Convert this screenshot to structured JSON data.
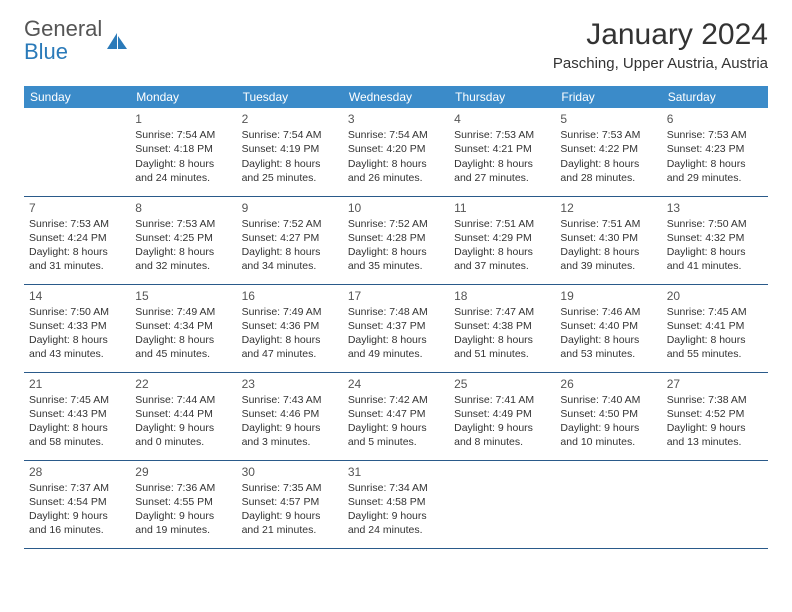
{
  "logo": {
    "text_gray": "General",
    "text_blue": "Blue"
  },
  "title": "January 2024",
  "location": "Pasching, Upper Austria, Austria",
  "colors": {
    "header_bg": "#3b8bc9",
    "header_text": "#ffffff",
    "rule": "#2a5a8a",
    "body_text": "#333333",
    "logo_blue": "#2a7ab9",
    "logo_gray": "#555555",
    "background": "#ffffff"
  },
  "day_headers": [
    "Sunday",
    "Monday",
    "Tuesday",
    "Wednesday",
    "Thursday",
    "Friday",
    "Saturday"
  ],
  "weeks": [
    [
      null,
      {
        "n": "1",
        "sr": "Sunrise: 7:54 AM",
        "ss": "Sunset: 4:18 PM",
        "d1": "Daylight: 8 hours",
        "d2": "and 24 minutes."
      },
      {
        "n": "2",
        "sr": "Sunrise: 7:54 AM",
        "ss": "Sunset: 4:19 PM",
        "d1": "Daylight: 8 hours",
        "d2": "and 25 minutes."
      },
      {
        "n": "3",
        "sr": "Sunrise: 7:54 AM",
        "ss": "Sunset: 4:20 PM",
        "d1": "Daylight: 8 hours",
        "d2": "and 26 minutes."
      },
      {
        "n": "4",
        "sr": "Sunrise: 7:53 AM",
        "ss": "Sunset: 4:21 PM",
        "d1": "Daylight: 8 hours",
        "d2": "and 27 minutes."
      },
      {
        "n": "5",
        "sr": "Sunrise: 7:53 AM",
        "ss": "Sunset: 4:22 PM",
        "d1": "Daylight: 8 hours",
        "d2": "and 28 minutes."
      },
      {
        "n": "6",
        "sr": "Sunrise: 7:53 AM",
        "ss": "Sunset: 4:23 PM",
        "d1": "Daylight: 8 hours",
        "d2": "and 29 minutes."
      }
    ],
    [
      {
        "n": "7",
        "sr": "Sunrise: 7:53 AM",
        "ss": "Sunset: 4:24 PM",
        "d1": "Daylight: 8 hours",
        "d2": "and 31 minutes."
      },
      {
        "n": "8",
        "sr": "Sunrise: 7:53 AM",
        "ss": "Sunset: 4:25 PM",
        "d1": "Daylight: 8 hours",
        "d2": "and 32 minutes."
      },
      {
        "n": "9",
        "sr": "Sunrise: 7:52 AM",
        "ss": "Sunset: 4:27 PM",
        "d1": "Daylight: 8 hours",
        "d2": "and 34 minutes."
      },
      {
        "n": "10",
        "sr": "Sunrise: 7:52 AM",
        "ss": "Sunset: 4:28 PM",
        "d1": "Daylight: 8 hours",
        "d2": "and 35 minutes."
      },
      {
        "n": "11",
        "sr": "Sunrise: 7:51 AM",
        "ss": "Sunset: 4:29 PM",
        "d1": "Daylight: 8 hours",
        "d2": "and 37 minutes."
      },
      {
        "n": "12",
        "sr": "Sunrise: 7:51 AM",
        "ss": "Sunset: 4:30 PM",
        "d1": "Daylight: 8 hours",
        "d2": "and 39 minutes."
      },
      {
        "n": "13",
        "sr": "Sunrise: 7:50 AM",
        "ss": "Sunset: 4:32 PM",
        "d1": "Daylight: 8 hours",
        "d2": "and 41 minutes."
      }
    ],
    [
      {
        "n": "14",
        "sr": "Sunrise: 7:50 AM",
        "ss": "Sunset: 4:33 PM",
        "d1": "Daylight: 8 hours",
        "d2": "and 43 minutes."
      },
      {
        "n": "15",
        "sr": "Sunrise: 7:49 AM",
        "ss": "Sunset: 4:34 PM",
        "d1": "Daylight: 8 hours",
        "d2": "and 45 minutes."
      },
      {
        "n": "16",
        "sr": "Sunrise: 7:49 AM",
        "ss": "Sunset: 4:36 PM",
        "d1": "Daylight: 8 hours",
        "d2": "and 47 minutes."
      },
      {
        "n": "17",
        "sr": "Sunrise: 7:48 AM",
        "ss": "Sunset: 4:37 PM",
        "d1": "Daylight: 8 hours",
        "d2": "and 49 minutes."
      },
      {
        "n": "18",
        "sr": "Sunrise: 7:47 AM",
        "ss": "Sunset: 4:38 PM",
        "d1": "Daylight: 8 hours",
        "d2": "and 51 minutes."
      },
      {
        "n": "19",
        "sr": "Sunrise: 7:46 AM",
        "ss": "Sunset: 4:40 PM",
        "d1": "Daylight: 8 hours",
        "d2": "and 53 minutes."
      },
      {
        "n": "20",
        "sr": "Sunrise: 7:45 AM",
        "ss": "Sunset: 4:41 PM",
        "d1": "Daylight: 8 hours",
        "d2": "and 55 minutes."
      }
    ],
    [
      {
        "n": "21",
        "sr": "Sunrise: 7:45 AM",
        "ss": "Sunset: 4:43 PM",
        "d1": "Daylight: 8 hours",
        "d2": "and 58 minutes."
      },
      {
        "n": "22",
        "sr": "Sunrise: 7:44 AM",
        "ss": "Sunset: 4:44 PM",
        "d1": "Daylight: 9 hours",
        "d2": "and 0 minutes."
      },
      {
        "n": "23",
        "sr": "Sunrise: 7:43 AM",
        "ss": "Sunset: 4:46 PM",
        "d1": "Daylight: 9 hours",
        "d2": "and 3 minutes."
      },
      {
        "n": "24",
        "sr": "Sunrise: 7:42 AM",
        "ss": "Sunset: 4:47 PM",
        "d1": "Daylight: 9 hours",
        "d2": "and 5 minutes."
      },
      {
        "n": "25",
        "sr": "Sunrise: 7:41 AM",
        "ss": "Sunset: 4:49 PM",
        "d1": "Daylight: 9 hours",
        "d2": "and 8 minutes."
      },
      {
        "n": "26",
        "sr": "Sunrise: 7:40 AM",
        "ss": "Sunset: 4:50 PM",
        "d1": "Daylight: 9 hours",
        "d2": "and 10 minutes."
      },
      {
        "n": "27",
        "sr": "Sunrise: 7:38 AM",
        "ss": "Sunset: 4:52 PM",
        "d1": "Daylight: 9 hours",
        "d2": "and 13 minutes."
      }
    ],
    [
      {
        "n": "28",
        "sr": "Sunrise: 7:37 AM",
        "ss": "Sunset: 4:54 PM",
        "d1": "Daylight: 9 hours",
        "d2": "and 16 minutes."
      },
      {
        "n": "29",
        "sr": "Sunrise: 7:36 AM",
        "ss": "Sunset: 4:55 PM",
        "d1": "Daylight: 9 hours",
        "d2": "and 19 minutes."
      },
      {
        "n": "30",
        "sr": "Sunrise: 7:35 AM",
        "ss": "Sunset: 4:57 PM",
        "d1": "Daylight: 9 hours",
        "d2": "and 21 minutes."
      },
      {
        "n": "31",
        "sr": "Sunrise: 7:34 AM",
        "ss": "Sunset: 4:58 PM",
        "d1": "Daylight: 9 hours",
        "d2": "and 24 minutes."
      },
      null,
      null,
      null
    ]
  ]
}
